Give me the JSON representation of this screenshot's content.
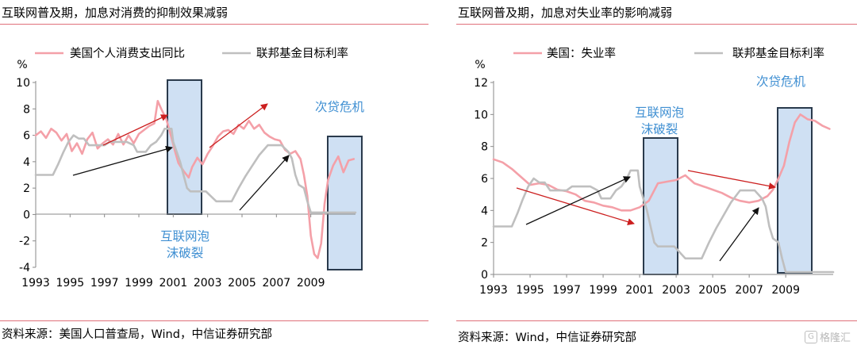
{
  "chart_data": [
    {
      "type": "line",
      "title": "互联网普及期，加息对消费的抑制效果减弱",
      "ylabel": "%",
      "ylim": [
        -4,
        10
      ],
      "yticks": [
        "10",
        "8",
        "6",
        "4",
        "2",
        "0",
        "-2",
        "-4"
      ],
      "xlim": [
        1993,
        2011.6
      ],
      "xticks": [
        "1993",
        "1995",
        "1997",
        "1999",
        "2001",
        "2003",
        "2005",
        "2007",
        "2009"
      ],
      "legend_position": "top",
      "grid": false,
      "series": [
        {
          "name": "美国个人消费支出同比",
          "color": "#f4a0a8",
          "x": [
            1993.0,
            1993.3,
            1993.6,
            1993.9,
            1994.2,
            1994.5,
            1994.8,
            1995.1,
            1995.4,
            1995.7,
            1996.0,
            1996.3,
            1996.6,
            1996.9,
            1997.2,
            1997.5,
            1997.8,
            1998.1,
            1998.4,
            1998.7,
            1999.0,
            1999.3,
            1999.6,
            1999.9,
            2000.1,
            2000.3,
            2000.6,
            2000.9,
            2001.1,
            2001.3,
            2001.6,
            2001.9,
            2002.1,
            2002.4,
            2002.7,
            2003.0,
            2003.3,
            2003.6,
            2003.9,
            2004.2,
            2004.5,
            2004.8,
            2005.1,
            2005.4,
            2005.7,
            2006.0,
            2006.3,
            2006.6,
            2006.9,
            2007.2,
            2007.5,
            2007.8,
            2008.1,
            2008.4,
            2008.6,
            2008.8,
            2009.0,
            2009.2,
            2009.4,
            2009.6,
            2009.8,
            2010.0,
            2010.3,
            2010.6,
            2010.9,
            2011.2,
            2011.5
          ],
          "values": [
            6.0,
            6.3,
            5.8,
            6.5,
            6.2,
            5.6,
            6.1,
            4.8,
            5.4,
            4.6,
            5.7,
            6.2,
            5.0,
            5.4,
            5.7,
            5.3,
            6.1,
            5.3,
            6.0,
            5.4,
            6.1,
            6.4,
            6.7,
            6.9,
            8.6,
            8.0,
            7.2,
            5.8,
            4.8,
            3.9,
            3.3,
            2.8,
            3.6,
            4.3,
            3.8,
            4.6,
            5.2,
            5.9,
            6.3,
            6.4,
            6.1,
            6.8,
            6.5,
            7.1,
            6.5,
            6.8,
            6.2,
            5.9,
            5.7,
            5.6,
            4.9,
            4.6,
            4.8,
            4.2,
            3.0,
            1.4,
            -1.6,
            -3.0,
            -3.3,
            -2.2,
            0.8,
            2.6,
            3.7,
            4.4,
            3.2,
            4.1,
            4.2
          ]
        },
        {
          "name": "联邦基金目标利率",
          "color": "#bfbfbf",
          "x": [
            1993.0,
            1994.0,
            1994.3,
            1994.6,
            1994.9,
            1995.2,
            1995.5,
            1995.8,
            1996.1,
            1996.5,
            1997.0,
            1997.3,
            1998.3,
            1998.7,
            1998.9,
            1999.4,
            1999.7,
            2000.0,
            2000.3,
            2000.5,
            2000.9,
            2001.0,
            2001.2,
            2001.4,
            2001.6,
            2001.8,
            2002.0,
            2002.9,
            2003.5,
            2004.4,
            2004.8,
            2005.2,
            2005.6,
            2006.0,
            2006.5,
            2007.3,
            2007.7,
            2007.9,
            2008.1,
            2008.3,
            2008.6,
            2008.8,
            2009.0,
            2011.6
          ],
          "values": [
            3.0,
            3.0,
            3.8,
            4.7,
            5.5,
            6.0,
            5.75,
            5.75,
            5.25,
            5.25,
            5.25,
            5.5,
            5.5,
            5.25,
            4.75,
            4.75,
            5.25,
            5.5,
            6.0,
            6.5,
            6.5,
            5.5,
            4.75,
            4.0,
            3.0,
            2.0,
            1.75,
            1.75,
            1.0,
            1.0,
            2.0,
            2.9,
            3.7,
            4.5,
            5.25,
            5.25,
            4.75,
            4.25,
            3.0,
            2.25,
            2.0,
            1.0,
            0.15,
            0.15
          ]
        }
      ],
      "annotations": [
        {
          "text": "互联网泡沫破裂",
          "lines": [
            "互联网泡",
            "沫破裂"
          ]
        },
        {
          "text": "次贷危机"
        }
      ],
      "highlight_periods": [
        [
          2000.0,
          2001.5
        ],
        [
          2008.3,
          2010.3
        ]
      ]
    },
    {
      "type": "line",
      "title": "互联网普及期，加息对失业率的影响减弱",
      "ylabel": "%",
      "ylim": [
        0,
        12
      ],
      "yticks": [
        "12",
        "10",
        "8",
        "6",
        "4",
        "2",
        "0"
      ],
      "xlim": [
        1993,
        2011.6
      ],
      "xticks": [
        "1993",
        "1995",
        "1997",
        "1999",
        "2001",
        "2003",
        "2005",
        "2007",
        "2009"
      ],
      "legend_position": "top",
      "grid": false,
      "series": [
        {
          "name": "美国：失业率",
          "color": "#f4a0a8",
          "x": [
            1993.0,
            1993.5,
            1994.0,
            1994.5,
            1995.0,
            1995.5,
            1996.0,
            1996.5,
            1997.0,
            1997.5,
            1998.0,
            1998.5,
            1999.0,
            1999.5,
            2000.0,
            2000.5,
            2001.0,
            2001.5,
            2002.0,
            2002.5,
            2003.0,
            2003.5,
            2004.0,
            2004.5,
            2005.0,
            2005.5,
            2006.0,
            2006.5,
            2007.0,
            2007.5,
            2008.0,
            2008.3,
            2008.6,
            2008.9,
            2009.2,
            2009.5,
            2009.8,
            2010.2,
            2010.6,
            2011.0,
            2011.4
          ],
          "values": [
            7.2,
            7.0,
            6.6,
            6.1,
            5.6,
            5.7,
            5.6,
            5.3,
            5.2,
            5.0,
            4.6,
            4.5,
            4.3,
            4.2,
            4.0,
            4.0,
            4.2,
            4.6,
            5.7,
            5.8,
            5.9,
            6.2,
            5.7,
            5.5,
            5.3,
            5.1,
            4.8,
            4.6,
            4.5,
            4.6,
            4.9,
            5.3,
            6.0,
            6.8,
            8.3,
            9.5,
            10.0,
            9.7,
            9.6,
            9.3,
            9.1
          ]
        },
        {
          "name": "联邦基金目标利率",
          "color": "#bfbfbf",
          "x": [
            1993.0,
            1994.0,
            1994.3,
            1994.6,
            1994.9,
            1995.2,
            1995.5,
            1995.8,
            1996.1,
            1996.5,
            1997.0,
            1997.3,
            1998.3,
            1998.7,
            1998.9,
            1999.4,
            1999.7,
            2000.0,
            2000.3,
            2000.5,
            2000.9,
            2001.0,
            2001.2,
            2001.4,
            2001.6,
            2001.8,
            2002.0,
            2002.9,
            2003.5,
            2004.4,
            2004.8,
            2005.2,
            2005.6,
            2006.0,
            2006.5,
            2007.3,
            2007.7,
            2007.9,
            2008.1,
            2008.3,
            2008.6,
            2008.8,
            2009.0,
            2011.6
          ],
          "values": [
            3.0,
            3.0,
            3.8,
            4.7,
            5.5,
            6.0,
            5.75,
            5.75,
            5.25,
            5.25,
            5.25,
            5.5,
            5.5,
            5.25,
            4.75,
            4.75,
            5.25,
            5.5,
            6.0,
            6.5,
            6.5,
            5.5,
            4.75,
            4.0,
            3.0,
            2.0,
            1.75,
            1.75,
            1.0,
            1.0,
            2.0,
            2.9,
            3.7,
            4.5,
            5.25,
            5.25,
            4.75,
            4.25,
            3.0,
            2.25,
            2.0,
            1.0,
            0.15,
            0.15
          ]
        }
      ],
      "annotations": [
        {
          "text": "互联网泡沫破裂",
          "lines": [
            "互联网泡",
            "沫破裂"
          ]
        },
        {
          "text": "次贷危机"
        }
      ],
      "highlight_periods": [
        [
          2000.6,
          2002.6
        ],
        [
          2008.0,
          2010.1
        ]
      ]
    }
  ],
  "sources": {
    "left": "资料来源：美国人口普查局，Wind，中信证券研究部",
    "right": "资料来源：Wind，中信证券研究部"
  },
  "watermark": {
    "icon_text": "G",
    "text": "格隆汇"
  }
}
